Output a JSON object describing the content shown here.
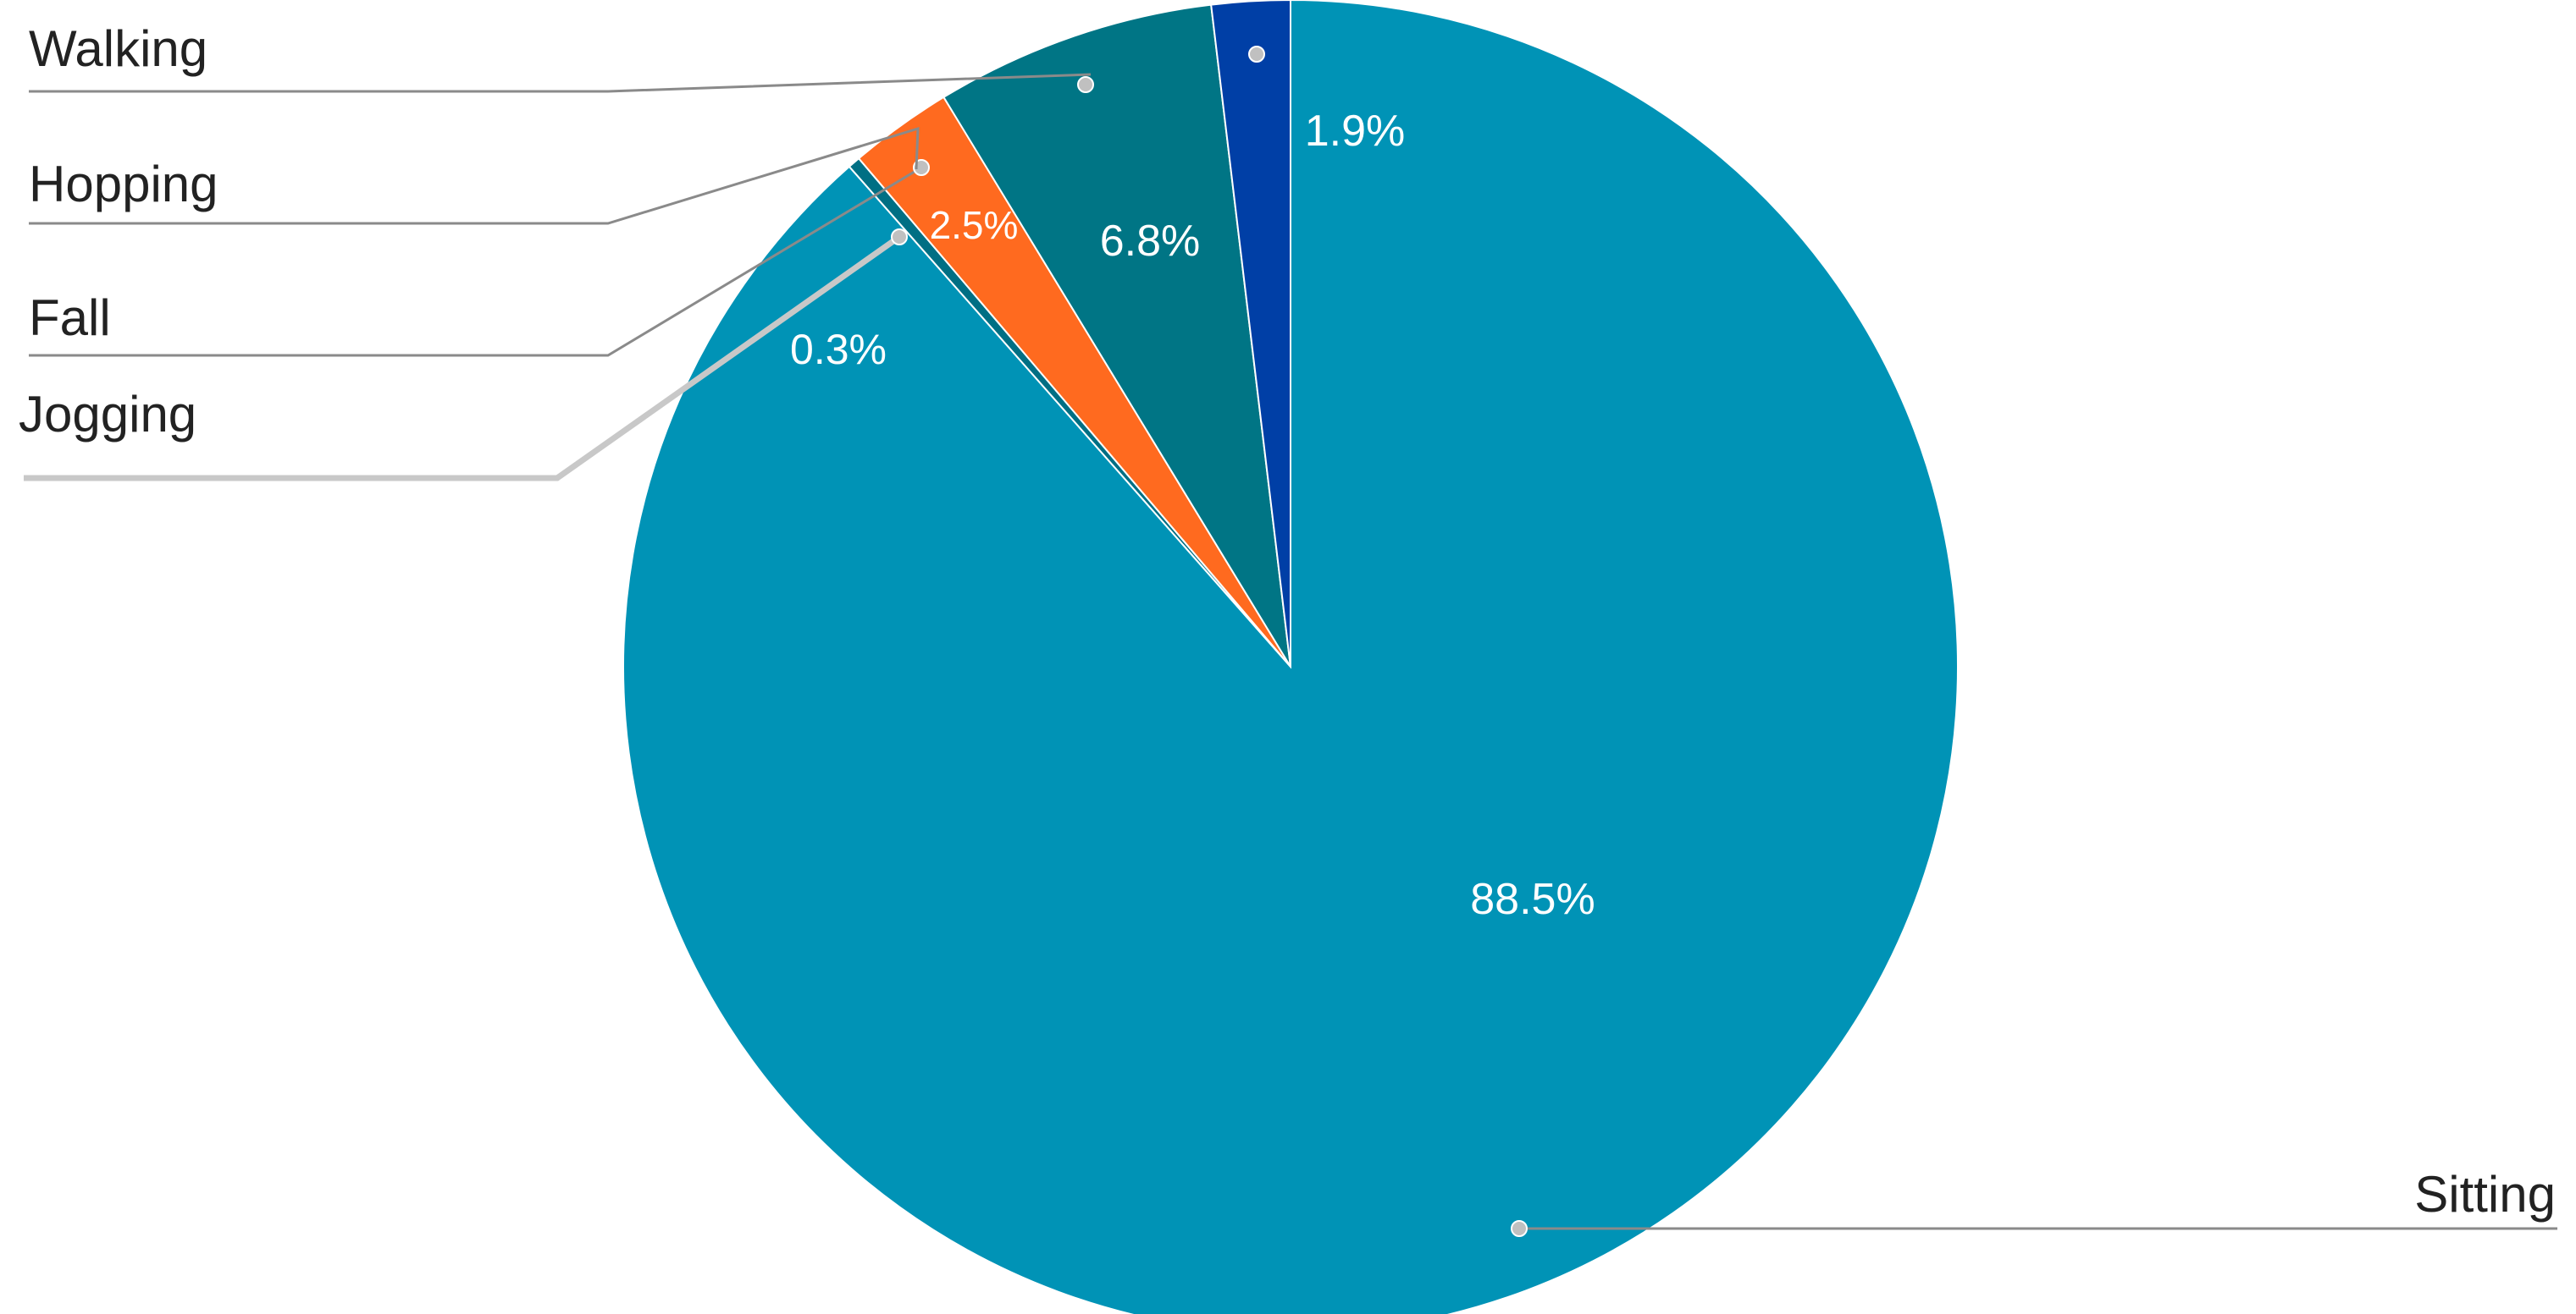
{
  "chart_data": {
    "type": "pie",
    "title": "",
    "slices": [
      {
        "label": "Sitting",
        "value": 88.5,
        "display": "88.5%",
        "color": "#0093b6"
      },
      {
        "label": "Jogging",
        "value": 0.3,
        "display": "0.3%",
        "color": "#006f84"
      },
      {
        "label": "Fall",
        "value": 2.5,
        "display": "2.5%",
        "color": "#ff6a1f"
      },
      {
        "label": "Hopping",
        "value": 6.8,
        "display": "6.8%",
        "color": "#007585"
      },
      {
        "label": "Walking",
        "value": 1.9,
        "display": "1.9%",
        "color": "#003fa6"
      }
    ],
    "legend": "callout labels outside the pie"
  }
}
